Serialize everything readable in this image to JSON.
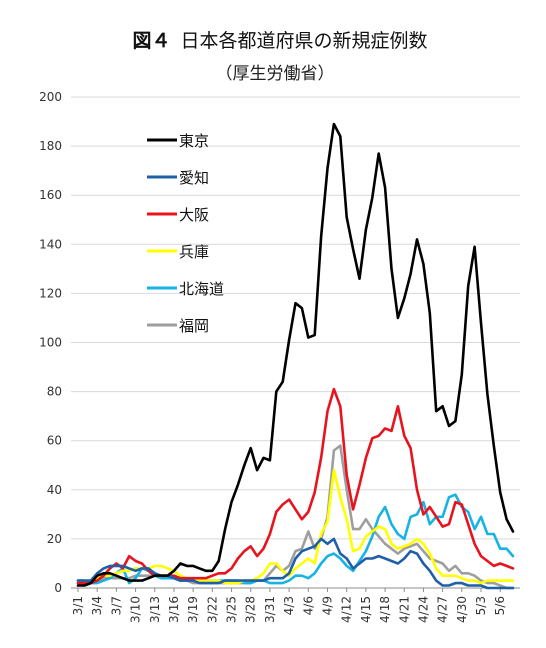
{
  "chart_data": {
    "type": "line",
    "title_fig": "図４",
    "title": "日本各都道府県の新規症例数",
    "subtitle": "（厚生労働省）",
    "xlabel": "",
    "ylabel": "",
    "ylim": [
      0,
      200
    ],
    "yticks": [
      0,
      20,
      40,
      60,
      80,
      100,
      120,
      140,
      160,
      180,
      200
    ],
    "grid": true,
    "legend_position": "top-left",
    "x": [
      "3/1",
      "3/2",
      "3/3",
      "3/4",
      "3/5",
      "3/6",
      "3/7",
      "3/8",
      "3/9",
      "3/10",
      "3/11",
      "3/12",
      "3/13",
      "3/14",
      "3/15",
      "3/16",
      "3/17",
      "3/18",
      "3/19",
      "3/20",
      "3/21",
      "3/22",
      "3/23",
      "3/24",
      "3/25",
      "3/26",
      "3/27",
      "3/28",
      "3/29",
      "3/30",
      "3/31",
      "4/1",
      "4/2",
      "4/3",
      "4/4",
      "4/5",
      "4/6",
      "4/7",
      "4/8",
      "4/9",
      "4/10",
      "4/11",
      "4/12",
      "4/13",
      "4/14",
      "4/15",
      "4/16",
      "4/17",
      "4/18",
      "4/19",
      "4/20",
      "4/21",
      "4/22",
      "4/23",
      "4/24",
      "4/25",
      "4/26",
      "4/27",
      "4/28",
      "4/29",
      "4/30",
      "5/1",
      "5/2",
      "5/3",
      "5/4",
      "5/5",
      "5/6",
      "5/7",
      "5/8"
    ],
    "x_tick_labels": [
      "3/1",
      "3/4",
      "3/7",
      "3/10",
      "3/13",
      "3/16",
      "3/19",
      "3/22",
      "3/25",
      "3/28",
      "3/31",
      "4/3",
      "4/6",
      "4/9",
      "4/12",
      "4/15",
      "4/18",
      "4/21",
      "4/24",
      "4/27",
      "4/30",
      "5/3",
      "5/6"
    ],
    "series": [
      {
        "name": "東京",
        "color": "#000000",
        "values": [
          1,
          1,
          2,
          5,
          6,
          6,
          5,
          4,
          3,
          3,
          3,
          4,
          5,
          5,
          5,
          7,
          10,
          9,
          9,
          8,
          7,
          7,
          11,
          24,
          35,
          42,
          50,
          57,
          48,
          53,
          52,
          80,
          84,
          101,
          116,
          114,
          102,
          103,
          143,
          171,
          189,
          184,
          151,
          138,
          126,
          146,
          159,
          177,
          163,
          130,
          110,
          118,
          128,
          142,
          132,
          112,
          72,
          74,
          66,
          68,
          87,
          123,
          139,
          108,
          79,
          58,
          39,
          28,
          23
        ]
      },
      {
        "name": "愛知",
        "color": "#1f5fa8",
        "values": [
          3,
          3,
          3,
          6,
          8,
          9,
          9,
          9,
          8,
          7,
          8,
          8,
          6,
          5,
          5,
          4,
          3,
          3,
          3,
          2,
          2,
          2,
          2,
          3,
          3,
          3,
          3,
          3,
          3,
          3,
          4,
          4,
          4,
          6,
          12,
          15,
          16,
          17,
          20,
          18,
          20,
          14,
          12,
          8,
          10,
          12,
          12,
          13,
          12,
          11,
          10,
          12,
          15,
          14,
          10,
          7,
          3,
          1,
          1,
          2,
          2,
          1,
          1,
          1,
          0,
          0,
          0,
          0,
          0
        ]
      },
      {
        "name": "大阪",
        "color": "#e8131d",
        "values": [
          2,
          2,
          2,
          3,
          5,
          8,
          10,
          8,
          13,
          11,
          10,
          7,
          5,
          5,
          5,
          5,
          4,
          4,
          4,
          4,
          4,
          5,
          6,
          6,
          8,
          12,
          15,
          17,
          13,
          16,
          22,
          31,
          34,
          36,
          32,
          28,
          31,
          39,
          53,
          72,
          81,
          74,
          46,
          32,
          42,
          53,
          61,
          62,
          65,
          64,
          74,
          62,
          57,
          40,
          30,
          33,
          29,
          25,
          26,
          35,
          34,
          26,
          18,
          13,
          11,
          9,
          10,
          9,
          8
        ]
      },
      {
        "name": "兵庫",
        "color": "#ffff00",
        "values": [
          2,
          2,
          2,
          4,
          5,
          5,
          6,
          7,
          7,
          8,
          8,
          8,
          9,
          9,
          8,
          7,
          5,
          4,
          4,
          3,
          3,
          3,
          3,
          2,
          2,
          2,
          3,
          3,
          4,
          6,
          10,
          10,
          7,
          5,
          8,
          10,
          12,
          10,
          22,
          27,
          48,
          37,
          28,
          15,
          16,
          21,
          23,
          25,
          24,
          18,
          16,
          17,
          18,
          20,
          18,
          14,
          8,
          5,
          5,
          5,
          4,
          3,
          3,
          2,
          3,
          3,
          3,
          3,
          3
        ]
      },
      {
        "name": "北海道",
        "color": "#16b3e4",
        "values": [
          3,
          3,
          2,
          2,
          3,
          4,
          6,
          8,
          2,
          4,
          8,
          7,
          5,
          4,
          4,
          4,
          3,
          3,
          3,
          3,
          3,
          3,
          3,
          3,
          3,
          3,
          2,
          2,
          3,
          3,
          2,
          2,
          2,
          3,
          5,
          5,
          4,
          6,
          10,
          13,
          14,
          12,
          9,
          7,
          11,
          15,
          21,
          29,
          33,
          26,
          22,
          20,
          29,
          30,
          35,
          26,
          29,
          29,
          37,
          38,
          33,
          31,
          24,
          29,
          22,
          22,
          16,
          16,
          13
        ]
      },
      {
        "name": "福岡",
        "color": "#9e9e9e",
        "values": [
          2,
          2,
          2,
          3,
          4,
          4,
          4,
          4,
          4,
          5,
          5,
          5,
          5,
          5,
          5,
          4,
          3,
          3,
          2,
          2,
          2,
          2,
          2,
          2,
          2,
          2,
          2,
          2,
          3,
          3,
          6,
          9,
          7,
          9,
          15,
          16,
          23,
          16,
          20,
          29,
          56,
          58,
          40,
          24,
          24,
          28,
          24,
          21,
          18,
          16,
          14,
          16,
          17,
          18,
          15,
          12,
          11,
          10,
          7,
          9,
          6,
          6,
          5,
          3,
          2,
          2,
          1,
          0,
          0
        ]
      }
    ]
  }
}
